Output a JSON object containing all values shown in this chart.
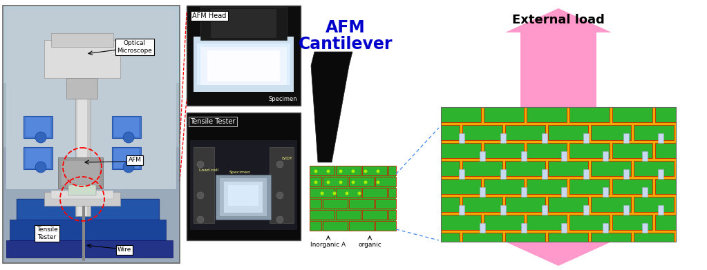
{
  "bg_color": "#ffffff",
  "labels": {
    "optical_microscope": "Optical\nMicroscope",
    "afm": "AFM",
    "tensile_tester_label": "Tensile\nTester",
    "wire": "Wire",
    "afm_head": "AFM Head",
    "specimen_top": "Specimen",
    "tensile_tester2": "Tensile Tester",
    "afm_cantilever_line1": "AFM",
    "afm_cantilever_line2": "Cantilever",
    "inorganic_a": "Inorganic A",
    "organic": "organic",
    "external_load": "External load",
    "load_cell": "Load cell",
    "specimen_bottom": "Specimen",
    "lvdt": "LVDT"
  },
  "colors": {
    "green_brick": "#2db32d",
    "red_mortar": "#cc2200",
    "yellow_organic": "#f5a800",
    "white_connector": "#c8d8f0",
    "pink_arrow": "#ff99cc",
    "dashed_line": "#4488ee",
    "blue_text": "#0000cc",
    "photo_bg": "#8a9aaa",
    "photo_bg2": "#c8d8e0",
    "inset_bg": "#111111",
    "blue_instrument": "#3366bb",
    "gray_column": "#bbbbbb",
    "white_specimen": "#ddeeff"
  }
}
